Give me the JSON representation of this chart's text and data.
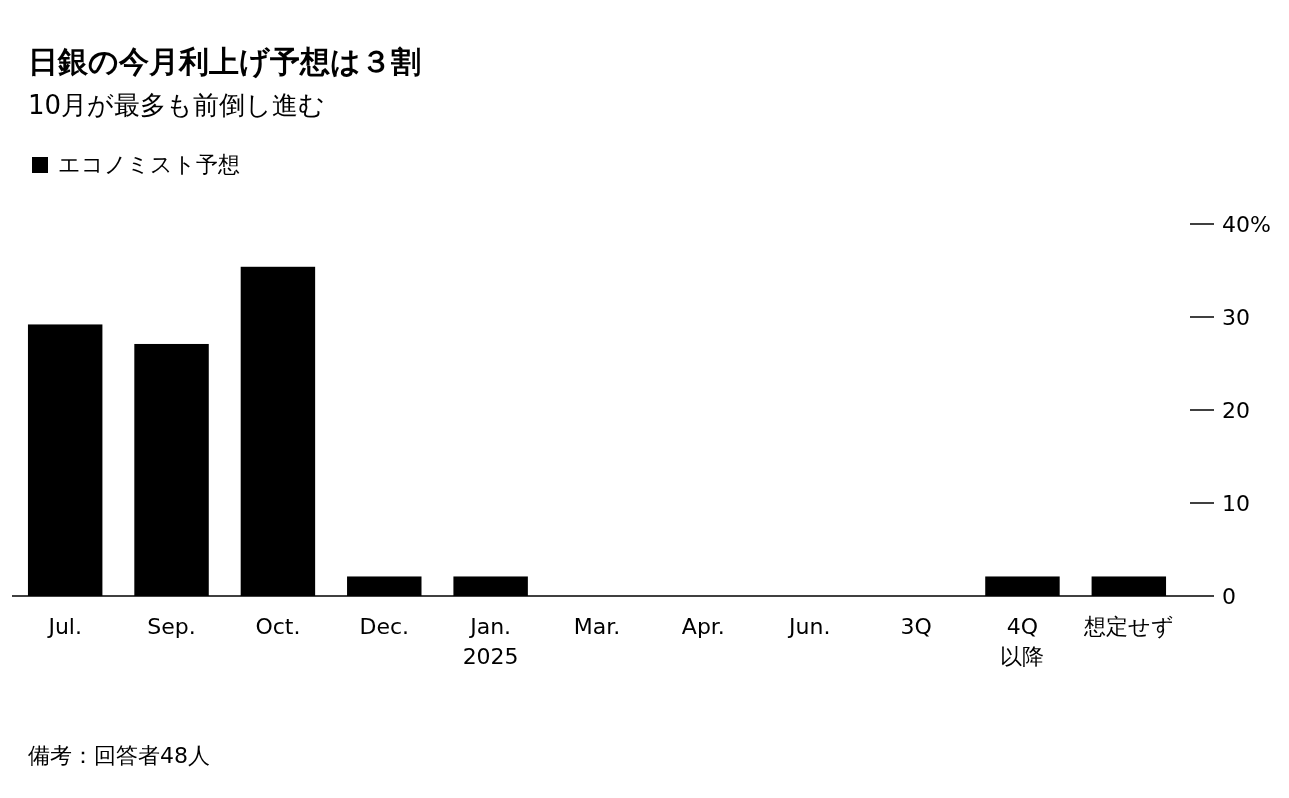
{
  "chart_data": {
    "type": "bar",
    "title": "日銀の今月利上げ予想は３割",
    "subtitle": "10月が最多も前倒し進む",
    "categories": [
      "Jul.",
      "Sep.",
      "Oct.",
      "Dec.",
      "Jan.\n2025",
      "Mar.",
      "Apr.",
      "Jun.",
      "3Q",
      "4Q\n以降",
      "想定せず"
    ],
    "series": [
      {
        "name": "エコノミスト予想",
        "color": "#000000",
        "values": [
          29.2,
          27.1,
          35.4,
          2.1,
          2.1,
          0,
          0,
          0,
          0,
          2.1,
          2.1
        ]
      }
    ],
    "ylim": [
      0,
      40
    ],
    "yticks": [
      0,
      10,
      20,
      30,
      {
        "value": 40,
        "label": "40%"
      }
    ],
    "legend": "top left",
    "annotations": [
      "備考：回答者48人"
    ]
  }
}
